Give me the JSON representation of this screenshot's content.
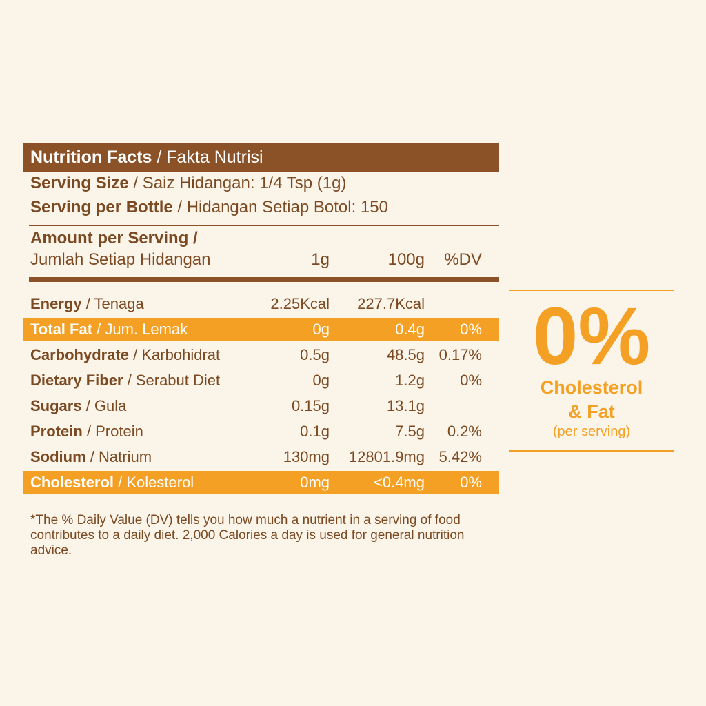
{
  "header": {
    "title_bold": "Nutrition Facts",
    "title_rest": " / Fakta Nutrisi"
  },
  "serving_size": {
    "bold": "Serving Size",
    "rest": " / Saiz Hidangan:  1/4 Tsp (1g)"
  },
  "serving_per_bottle": {
    "bold": "Serving per Bottle",
    "rest": " / Hidangan Setiap Botol: 150"
  },
  "amount": {
    "bold": "Amount per Serving /",
    "rest": "Jumlah Setiap Hidangan",
    "col1": "1g",
    "col2": "100g",
    "col3": "%DV"
  },
  "rows": [
    {
      "bold": "Energy",
      "rest": " / Tenaga",
      "v1": "2.25Kcal",
      "v2": "227.7Kcal",
      "dv": ""
    },
    {
      "bold": "Total Fat",
      "rest": " / Jum. Lemak",
      "v1": "0g",
      "v2": "0.4g",
      "dv": "0%"
    },
    {
      "bold": "Carbohydrate",
      "rest": " / Karbohidrat",
      "v1": "0.5g",
      "v2": "48.5g",
      "dv": "0.17%"
    },
    {
      "bold": "Dietary Fiber",
      "rest": " / Serabut Diet",
      "v1": "0g",
      "v2": "1.2g",
      "dv": "0%"
    },
    {
      "bold": "Sugars",
      "rest": " / Gula",
      "v1": "0.15g",
      "v2": "13.1g",
      "dv": ""
    },
    {
      "bold": "Protein",
      "rest": " / Protein",
      "v1": "0.1g",
      "v2": "7.5g",
      "dv": "0.2%"
    },
    {
      "bold": "Sodium",
      "rest": " / Natrium",
      "v1": "130mg",
      "v2": "12801.9mg",
      "dv": "5.42%"
    },
    {
      "bold": "Cholesterol",
      "rest": " / Kolesterol",
      "v1": "0mg",
      "v2": "<0.4mg",
      "dv": "0%"
    }
  ],
  "footnote": "*The % Daily Value (DV) tells you how much a nutrient in a serving of food contributes to a daily diet. 2,000 Calories a day is used for general nutrition advice.",
  "badge": {
    "big": "0%",
    "line1": "Cholesterol",
    "line2": "& Fat",
    "line3": "(per serving)"
  },
  "colors": {
    "brown": "#8A5226",
    "orange": "#F4A024",
    "background": "#FBF4E9"
  }
}
